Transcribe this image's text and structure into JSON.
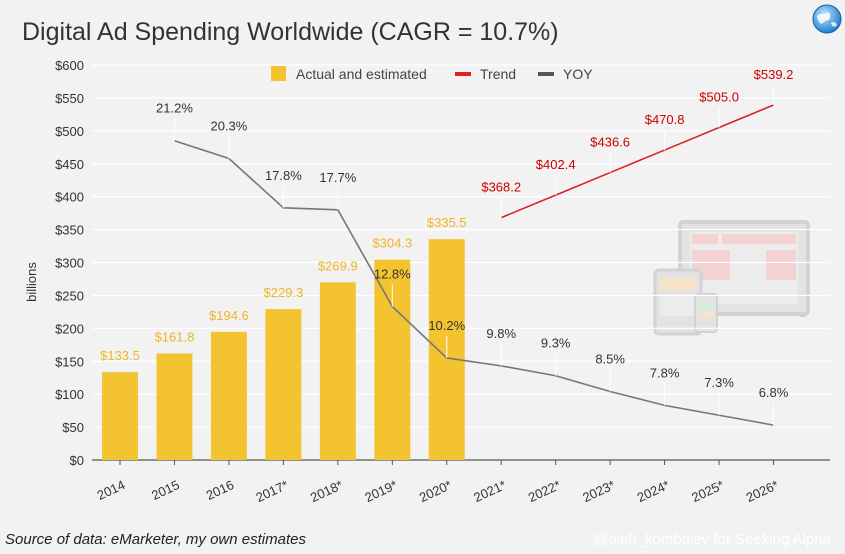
{
  "page": {
    "title": "Digital Ad Spending Worldwide (CAGR = 10.7%)",
    "source": "Source of data: eMarketer, my own estimates",
    "watermark": "@oleh_kombaiev for Seeking Alpha",
    "icon": "globe-icon"
  },
  "colors": {
    "bar": "#f4c430",
    "trend": "#dd2222",
    "yoy": "#777777",
    "trend_label": "#cc0000",
    "bar_label": "#f0b429",
    "background": "#f2f2f2"
  },
  "chart_data": {
    "type": "bar",
    "title": "Digital Ad Spending Worldwide (CAGR = 10.7%)",
    "ylabel": "billions",
    "xlabel": "",
    "ylim": [
      0,
      600
    ],
    "y_ticks": [
      "$0",
      "$50",
      "$100",
      "$150",
      "$200",
      "$250",
      "$300",
      "$350",
      "$400",
      "$450",
      "$500",
      "$550",
      "$600"
    ],
    "categories": [
      "2014",
      "2015",
      "2016",
      "2017*",
      "2018*",
      "2019*",
      "2020*",
      "2021*",
      "2022*",
      "2023*",
      "2024*",
      "2025*",
      "2026*"
    ],
    "legend": [
      "Actual and estimated",
      "Trend",
      "YOY"
    ],
    "legend_position": "top",
    "grid": true,
    "series": [
      {
        "name": "Actual and estimated",
        "kind": "bar",
        "values": [
          133.5,
          161.8,
          194.6,
          229.3,
          269.9,
          304.3,
          335.5,
          null,
          null,
          null,
          null,
          null,
          null
        ],
        "labels": [
          "$133.5",
          "$161.8",
          "$194.6",
          "$229.3",
          "$269.9",
          "$304.3",
          "$335.5",
          "",
          "",
          "",
          "",
          "",
          ""
        ]
      },
      {
        "name": "Trend",
        "kind": "line",
        "values": [
          null,
          null,
          null,
          null,
          null,
          null,
          null,
          368.2,
          402.4,
          436.6,
          470.8,
          505.0,
          539.2
        ],
        "labels": [
          "",
          "",
          "",
          "",
          "",
          "",
          "",
          "$368.2",
          "$402.4",
          "$436.6",
          "$470.8",
          "$505.0",
          "$539.2"
        ]
      },
      {
        "name": "YOY",
        "kind": "line",
        "values": [
          null,
          21.2,
          20.3,
          17.8,
          17.7,
          12.8,
          10.2,
          9.8,
          9.3,
          8.5,
          7.8,
          7.3,
          6.8
        ],
        "labels": [
          "",
          "21.2%",
          "20.3%",
          "17.8%",
          "17.7%",
          "12.8%",
          "10.2%",
          "9.8%",
          "9.3%",
          "8.5%",
          "7.8%",
          "7.3%",
          "6.8%"
        ]
      }
    ]
  }
}
